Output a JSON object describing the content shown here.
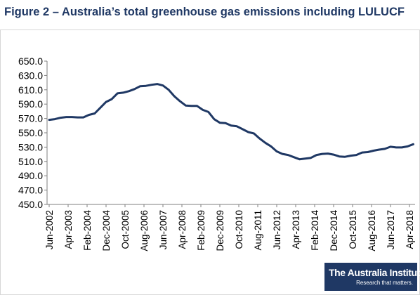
{
  "figure_title": "Figure 2 – Australia’s total greenhouse gas emissions including LULUCF",
  "logo": {
    "name": "The Australia Institute",
    "tagline": "Research that matters."
  },
  "colors": {
    "title": "#1f3864",
    "series": "#1f3864",
    "logo_bg": "#1f3864",
    "axis": "#7f7f7f"
  },
  "chart_data": {
    "type": "line",
    "title": "",
    "xlabel": "",
    "ylabel": "",
    "ylim": [
      450,
      650
    ],
    "y_ticks": [
      "650.0",
      "630.0",
      "610.0",
      "590.0",
      "570.0",
      "550.0",
      "530.0",
      "510.0",
      "490.0",
      "470.0",
      "450.0"
    ],
    "grid": false,
    "legend": "none",
    "x_tick_labels": [
      "Jun-2002",
      "Apr-2003",
      "Feb-2004",
      "Dec-2004",
      "Oct-2005",
      "Aug-2006",
      "Jun-2007",
      "Apr-2008",
      "Feb-2009",
      "Dec-2009",
      "Oct-2010",
      "Aug-2011",
      "Jun-2012",
      "Apr-2013",
      "Feb-2014",
      "Dec-2014",
      "Oct-2015",
      "Aug-2016",
      "Jun-2017",
      "Apr-2018"
    ],
    "x": [
      "Jun-2002",
      "Sep-2002",
      "Dec-2002",
      "Mar-2003",
      "Jun-2003",
      "Sep-2003",
      "Dec-2003",
      "Mar-2004",
      "Jun-2004",
      "Sep-2004",
      "Dec-2004",
      "Mar-2005",
      "Jun-2005",
      "Sep-2005",
      "Dec-2005",
      "Mar-2006",
      "Jun-2006",
      "Sep-2006",
      "Dec-2006",
      "Mar-2007",
      "Jun-2007",
      "Sep-2007",
      "Dec-2007",
      "Mar-2008",
      "Jun-2008",
      "Sep-2008",
      "Dec-2008",
      "Mar-2009",
      "Jun-2009",
      "Sep-2009",
      "Dec-2009",
      "Mar-2010",
      "Jun-2010",
      "Sep-2010",
      "Dec-2010",
      "Mar-2011",
      "Jun-2011",
      "Sep-2011",
      "Dec-2011",
      "Mar-2012",
      "Jun-2012",
      "Sep-2012",
      "Dec-2012",
      "Mar-2013",
      "Jun-2013",
      "Sep-2013",
      "Dec-2013",
      "Mar-2014",
      "Jun-2014",
      "Sep-2014",
      "Dec-2014",
      "Mar-2015",
      "Jun-2015",
      "Sep-2015",
      "Dec-2015",
      "Mar-2016",
      "Jun-2016",
      "Sep-2016",
      "Dec-2016",
      "Mar-2017",
      "Jun-2017",
      "Sep-2017",
      "Dec-2017",
      "Mar-2018",
      "Jun-2018"
    ],
    "series": [
      {
        "values": [
          568,
          569,
          571,
          572,
          572,
          571.5,
          571.5,
          575,
          577,
          585,
          593,
          597,
          605,
          606,
          608,
          611,
          615,
          615.5,
          617,
          618,
          616,
          610,
          601,
          594,
          588,
          587.5,
          587.5,
          582,
          579,
          569,
          564,
          563.5,
          560,
          559,
          555,
          551,
          549,
          542,
          536,
          531,
          524,
          520.5,
          519,
          516,
          513,
          514,
          515,
          519,
          520.5,
          521,
          519.5,
          517,
          516.5,
          518,
          519,
          522.5,
          523,
          525,
          526.5,
          527.5,
          530.5,
          529.5,
          529.5,
          531,
          534
        ]
      }
    ]
  }
}
